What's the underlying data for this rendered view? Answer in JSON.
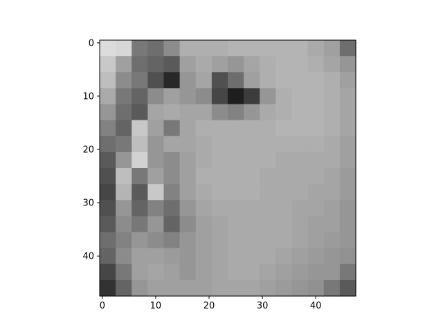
{
  "chart_data": {
    "type": "heatmap",
    "title": "",
    "xlabel": "",
    "ylabel": "",
    "colormap": "gray",
    "image_size": [
      48,
      48
    ],
    "xlim": [
      -0.5,
      47.5
    ],
    "ylim": [
      47.5,
      -0.5
    ],
    "x_ticks": [
      0,
      10,
      20,
      30,
      40
    ],
    "y_ticks": [
      0,
      10,
      20,
      30,
      40
    ],
    "x_tick_labels": [
      "0",
      "10",
      "20",
      "30",
      "40"
    ],
    "y_tick_labels": [
      "0",
      "10",
      "20",
      "30",
      "40"
    ],
    "values_grid_16x16": [
      [
        220,
        215,
        120,
        110,
        140,
        175,
        175,
        175,
        180,
        180,
        180,
        180,
        180,
        170,
        160,
        110
      ],
      [
        200,
        160,
        110,
        100,
        90,
        160,
        170,
        160,
        150,
        165,
        175,
        180,
        180,
        175,
        165,
        150
      ],
      [
        190,
        140,
        120,
        80,
        40,
        150,
        165,
        80,
        110,
        160,
        175,
        180,
        180,
        180,
        175,
        160
      ],
      [
        170,
        120,
        100,
        140,
        160,
        150,
        140,
        70,
        30,
        60,
        150,
        175,
        180,
        180,
        175,
        165
      ],
      [
        150,
        110,
        90,
        165,
        170,
        165,
        165,
        140,
        130,
        150,
        170,
        175,
        180,
        180,
        175,
        165
      ],
      [
        130,
        100,
        200,
        160,
        120,
        165,
        175,
        175,
        175,
        175,
        175,
        180,
        180,
        180,
        175,
        165
      ],
      [
        110,
        120,
        190,
        150,
        165,
        165,
        170,
        175,
        175,
        175,
        175,
        175,
        175,
        175,
        170,
        160
      ],
      [
        90,
        150,
        210,
        150,
        140,
        160,
        170,
        175,
        175,
        175,
        175,
        170,
        170,
        170,
        170,
        160
      ],
      [
        80,
        190,
        120,
        160,
        140,
        160,
        175,
        175,
        175,
        175,
        170,
        170,
        170,
        170,
        165,
        155
      ],
      [
        70,
        180,
        90,
        200,
        130,
        160,
        170,
        175,
        175,
        175,
        170,
        170,
        170,
        165,
        165,
        155
      ],
      [
        80,
        150,
        100,
        130,
        110,
        150,
        165,
        170,
        170,
        170,
        170,
        170,
        165,
        165,
        160,
        150
      ],
      [
        90,
        140,
        120,
        150,
        100,
        140,
        160,
        165,
        170,
        170,
        170,
        170,
        165,
        160,
        160,
        150
      ],
      [
        110,
        130,
        150,
        140,
        130,
        150,
        160,
        165,
        170,
        170,
        170,
        170,
        165,
        160,
        155,
        150
      ],
      [
        100,
        140,
        160,
        160,
        155,
        150,
        160,
        165,
        170,
        170,
        170,
        165,
        160,
        155,
        150,
        145
      ],
      [
        70,
        120,
        160,
        165,
        160,
        150,
        160,
        165,
        170,
        170,
        165,
        160,
        155,
        150,
        150,
        120
      ],
      [
        50,
        100,
        150,
        160,
        160,
        160,
        160,
        165,
        165,
        165,
        160,
        155,
        150,
        145,
        120,
        90
      ]
    ]
  }
}
